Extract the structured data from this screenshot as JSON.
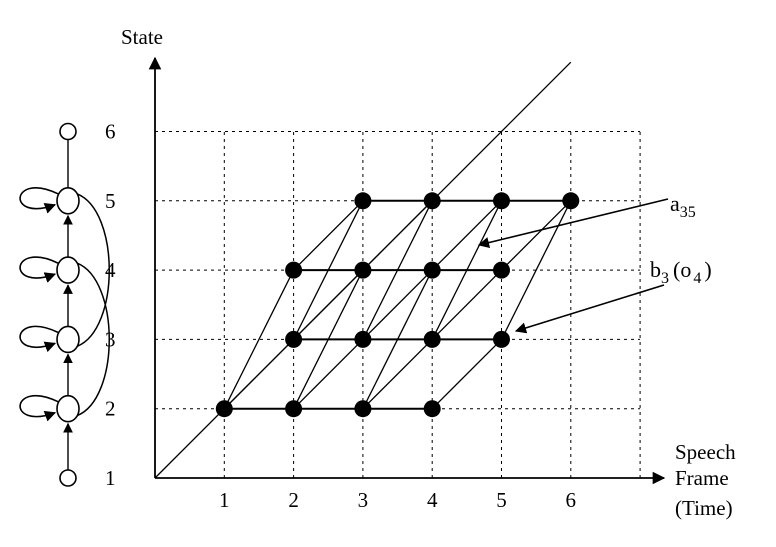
{
  "axes": {
    "y_title": "State",
    "x_title_lines": [
      "Speech",
      "Frame",
      "(Time)"
    ],
    "x_ticks": [
      "1",
      "2",
      "3",
      "4",
      "5",
      "6"
    ],
    "y_ticks": [
      "1",
      "2",
      "3",
      "4",
      "5",
      "6"
    ]
  },
  "hmm": {
    "states": [
      "1",
      "2",
      "3",
      "4",
      "5",
      "6"
    ],
    "self_loop_states": [
      2,
      3,
      4,
      5
    ],
    "forward_arrows": [
      [
        1,
        2
      ],
      [
        2,
        3
      ],
      [
        3,
        4
      ],
      [
        4,
        5
      ]
    ],
    "skip_arcs": [
      [
        2,
        4
      ],
      [
        3,
        5
      ]
    ]
  },
  "trellis": {
    "nodes": [
      [
        1,
        2
      ],
      [
        2,
        2
      ],
      [
        3,
        2
      ],
      [
        4,
        2
      ],
      [
        2,
        3
      ],
      [
        3,
        3
      ],
      [
        4,
        3
      ],
      [
        5,
        3
      ],
      [
        2,
        4
      ],
      [
        3,
        4
      ],
      [
        4,
        4
      ],
      [
        5,
        4
      ],
      [
        3,
        5
      ],
      [
        4,
        5
      ],
      [
        5,
        5
      ],
      [
        6,
        5
      ]
    ],
    "edges": [
      [
        1,
        2,
        2,
        2
      ],
      [
        2,
        2,
        3,
        2
      ],
      [
        3,
        2,
        4,
        2
      ],
      [
        2,
        3,
        3,
        3
      ],
      [
        3,
        3,
        4,
        3
      ],
      [
        4,
        3,
        5,
        3
      ],
      [
        2,
        4,
        3,
        4
      ],
      [
        3,
        4,
        4,
        4
      ],
      [
        4,
        4,
        5,
        4
      ],
      [
        3,
        5,
        4,
        5
      ],
      [
        4,
        5,
        5,
        5
      ],
      [
        5,
        5,
        6,
        5
      ],
      [
        1,
        2,
        2,
        3
      ],
      [
        2,
        2,
        3,
        3
      ],
      [
        3,
        2,
        4,
        3
      ],
      [
        4,
        2,
        5,
        3
      ],
      [
        1,
        2,
        2,
        4
      ],
      [
        2,
        2,
        3,
        4
      ],
      [
        3,
        2,
        4,
        4
      ],
      [
        2,
        3,
        3,
        4
      ],
      [
        3,
        3,
        4,
        4
      ],
      [
        4,
        3,
        5,
        4
      ],
      [
        2,
        3,
        3,
        5
      ],
      [
        3,
        3,
        4,
        5
      ],
      [
        4,
        3,
        5,
        5
      ],
      [
        5,
        3,
        6,
        5
      ],
      [
        2,
        4,
        3,
        5
      ],
      [
        3,
        4,
        4,
        5
      ],
      [
        4,
        4,
        5,
        5
      ],
      [
        5,
        4,
        6,
        5
      ]
    ],
    "diagonal": [
      0,
      1,
      6,
      6
    ]
  },
  "annotations": {
    "transition": {
      "base": "a",
      "sub": "35",
      "target": [
        4.7,
        4.4
      ]
    },
    "emission": {
      "b": "b",
      "b_sub": "3",
      "o": "o",
      "o_sub": "4",
      "target": [
        5,
        3
      ]
    }
  }
}
